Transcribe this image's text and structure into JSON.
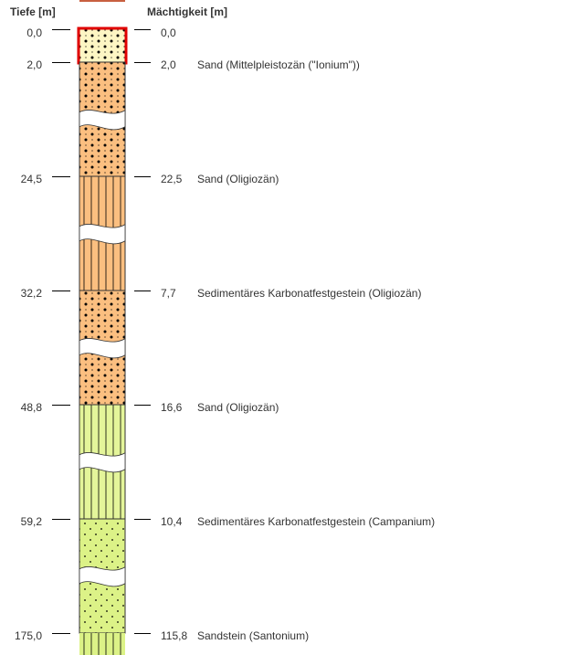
{
  "headers": {
    "depth": "Tiefe [m]",
    "thickness": "Mächtigkeit [m]"
  },
  "top_marker": {
    "depth": "0,0",
    "thickness": "0,0"
  },
  "layers": [
    {
      "depth": "2,0",
      "thickness": "2,0",
      "description": "Sand (Mittelpleistozän (\"Ionium\"))",
      "color": "#fdf6c4",
      "pattern": "dots",
      "selected": true
    },
    {
      "depth": "24,5",
      "thickness": "22,5",
      "description": "Sand (Oligiozän)",
      "color": "#fbbf80",
      "pattern": "dots",
      "break": true
    },
    {
      "depth": "32,2",
      "thickness": "7,7",
      "description": "Sedimentäres Karbonatfestgestein (Oligiozän)",
      "color": "#fbbf80",
      "pattern": "lines",
      "break": true
    },
    {
      "depth": "48,8",
      "thickness": "16,6",
      "description": "Sand (Oligiozän)",
      "color": "#fbbf80",
      "pattern": "dots",
      "break": true
    },
    {
      "depth": "59,2",
      "thickness": "10,4",
      "description": "Sedimentäres Karbonatfestgestein (Campanium)",
      "color": "#e4f59a",
      "pattern": "lines",
      "break": true
    },
    {
      "depth": "175,0",
      "thickness": "115,8",
      "description": "Sandstein (Santonium)",
      "color": "#dcf287",
      "pattern": "pluses",
      "break": true
    }
  ],
  "colors": {
    "selection": "#e00000",
    "tick": "#000000"
  }
}
